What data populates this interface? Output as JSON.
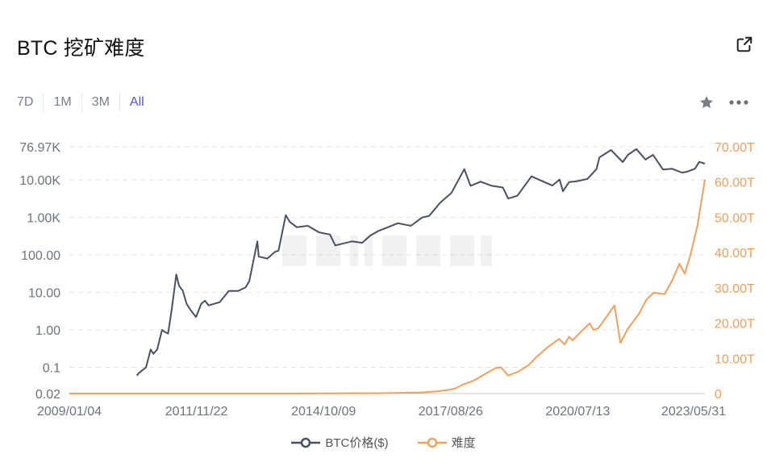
{
  "header": {
    "title": "BTC 挖矿难度"
  },
  "toolbar": {
    "ranges": [
      {
        "label": "7D",
        "active": false
      },
      {
        "label": "1M",
        "active": false
      },
      {
        "label": "3M",
        "active": false
      },
      {
        "label": "All",
        "active": true
      }
    ],
    "icons": [
      "share-icon",
      "star-icon",
      "more-icon"
    ]
  },
  "chart_data": {
    "type": "line",
    "title": "BTC 挖矿难度",
    "x_range": [
      "2009/01/04",
      "2023/05/31"
    ],
    "x_ticks": [
      "2009/01/04",
      "2011/11/22",
      "2014/10/09",
      "2017/08/26",
      "2020/07/13",
      "2023/05/31"
    ],
    "y_left": {
      "scale": "log",
      "range": [
        0.02,
        76970
      ],
      "ticks": [
        {
          "value": 76970,
          "label": "76.97K"
        },
        {
          "value": 10000,
          "label": "10.00K"
        },
        {
          "value": 1000,
          "label": "1.00K"
        },
        {
          "value": 100,
          "label": "100.00"
        },
        {
          "value": 10,
          "label": "10.00"
        },
        {
          "value": 1,
          "label": "1.00"
        },
        {
          "value": 0.1,
          "label": "0.1"
        },
        {
          "value": 0.02,
          "label": "0.02"
        }
      ]
    },
    "y_right": {
      "scale": "linear",
      "unit": "T",
      "range": [
        0,
        70
      ],
      "ticks": [
        {
          "value": 70,
          "label": "70.00T"
        },
        {
          "value": 60,
          "label": "60.00T"
        },
        {
          "value": 50,
          "label": "50.00T"
        },
        {
          "value": 40,
          "label": "40.00T"
        },
        {
          "value": 30,
          "label": "30.00T"
        },
        {
          "value": 20,
          "label": "20.00T"
        },
        {
          "value": 10,
          "label": "10.00T"
        },
        {
          "value": 0,
          "label": "0"
        }
      ]
    },
    "grid": true,
    "legend_position": "bottom",
    "colors": {
      "price": "#4a4f62",
      "difficulty": "#f0a05a",
      "active": "#5b4ed8"
    },
    "series": [
      {
        "name": "BTC价格($)",
        "axis": "left",
        "points": [
          [
            "2010/07/17",
            0.06
          ],
          [
            "2010/08/01",
            0.07
          ],
          [
            "2010/10/01",
            0.1
          ],
          [
            "2010/11/08",
            0.3
          ],
          [
            "2010/12/01",
            0.23
          ],
          [
            "2011/01/01",
            0.3
          ],
          [
            "2011/02/10",
            1.0
          ],
          [
            "2011/03/01",
            0.9
          ],
          [
            "2011/04/01",
            0.8
          ],
          [
            "2011/05/01",
            3.5
          ],
          [
            "2011/06/08",
            30.0
          ],
          [
            "2011/07/01",
            15.0
          ],
          [
            "2011/08/01",
            11.0
          ],
          [
            "2011/09/01",
            5.0
          ],
          [
            "2011/10/01",
            3.5
          ],
          [
            "2011/11/18",
            2.2
          ],
          [
            "2012/01/01",
            5.0
          ],
          [
            "2012/02/01",
            6.0
          ],
          [
            "2012/03/01",
            4.5
          ],
          [
            "2012/06/01",
            5.5
          ],
          [
            "2012/08/15",
            11.0
          ],
          [
            "2012/11/01",
            11.0
          ],
          [
            "2013/01/01",
            13.5
          ],
          [
            "2013/02/01",
            20.0
          ],
          [
            "2013/04/09",
            230.0
          ],
          [
            "2013/04/20",
            90.0
          ],
          [
            "2013/07/01",
            80.0
          ],
          [
            "2013/09/01",
            120.0
          ],
          [
            "2013/10/01",
            130.0
          ],
          [
            "2013/11/30",
            1150.0
          ],
          [
            "2014/01/01",
            770.0
          ],
          [
            "2014/03/01",
            550.0
          ],
          [
            "2014/06/01",
            600.0
          ],
          [
            "2014/09/01",
            400.0
          ],
          [
            "2014/12/01",
            350.0
          ],
          [
            "2015/01/14",
            180.0
          ],
          [
            "2015/06/01",
            230.0
          ],
          [
            "2015/08/24",
            210.0
          ],
          [
            "2015/11/01",
            330.0
          ],
          [
            "2016/01/01",
            430.0
          ],
          [
            "2016/06/15",
            700.0
          ],
          [
            "2016/10/01",
            600.0
          ],
          [
            "2017/01/01",
            1000.0
          ],
          [
            "2017/03/01",
            1100.0
          ],
          [
            "2017/06/01",
            2500.0
          ],
          [
            "2017/09/01",
            4500.0
          ],
          [
            "2017/12/17",
            19500.0
          ],
          [
            "2018/02/06",
            7000.0
          ],
          [
            "2018/05/01",
            9000.0
          ],
          [
            "2018/08/01",
            7000.0
          ],
          [
            "2018/11/01",
            6300.0
          ],
          [
            "2018/12/15",
            3200.0
          ],
          [
            "2019/03/01",
            3800.0
          ],
          [
            "2019/06/26",
            12500.0
          ],
          [
            "2019/09/01",
            10000.0
          ],
          [
            "2019/12/15",
            7100.0
          ],
          [
            "2020/02/13",
            10300.0
          ],
          [
            "2020/03/12",
            5000.0
          ],
          [
            "2020/05/01",
            8800.0
          ],
          [
            "2020/07/01",
            9200.0
          ],
          [
            "2020/10/01",
            10700.0
          ],
          [
            "2020/12/15",
            19500.0
          ],
          [
            "2021/01/08",
            40000.0
          ],
          [
            "2021/04/14",
            63000.0
          ],
          [
            "2021/07/20",
            30000.0
          ],
          [
            "2021/09/01",
            47000.0
          ],
          [
            "2021/11/10",
            67000.0
          ],
          [
            "2022/01/24",
            35000.0
          ],
          [
            "2022/03/28",
            47000.0
          ],
          [
            "2022/06/18",
            19000.0
          ],
          [
            "2022/09/01",
            20000.0
          ],
          [
            "2022/11/21",
            15800.0
          ],
          [
            "2023/01/01",
            16500.0
          ],
          [
            "2023/03/10",
            20000.0
          ],
          [
            "2023/04/14",
            30500.0
          ],
          [
            "2023/05/31",
            27000.0
          ]
        ]
      },
      {
        "name": "难度",
        "axis": "right",
        "points": [
          [
            "2009/01/04",
            0
          ],
          [
            "2013/01/01",
            0
          ],
          [
            "2014/01/01",
            0.002
          ],
          [
            "2015/01/01",
            0.04
          ],
          [
            "2016/01/01",
            0.1
          ],
          [
            "2016/10/01",
            0.25
          ],
          [
            "2017/01/01",
            0.33
          ],
          [
            "2017/05/01",
            0.6
          ],
          [
            "2017/08/01",
            1.0
          ],
          [
            "2017/10/01",
            1.4
          ],
          [
            "2017/12/01",
            2.5
          ],
          [
            "2018/03/01",
            3.6
          ],
          [
            "2018/06/01",
            5.4
          ],
          [
            "2018/09/01",
            7.2
          ],
          [
            "2018/10/15",
            7.45
          ],
          [
            "2018/12/15",
            5.1
          ],
          [
            "2019/03/01",
            6.1
          ],
          [
            "2019/06/01",
            8.0
          ],
          [
            "2019/08/01",
            10.2
          ],
          [
            "2019/11/01",
            13.0
          ],
          [
            "2020/02/10",
            15.5
          ],
          [
            "2020/03/26",
            13.9
          ],
          [
            "2020/05/01",
            16.1
          ],
          [
            "2020/06/01",
            15.1
          ],
          [
            "2020/08/01",
            17.3
          ],
          [
            "2020/10/20",
            19.9
          ],
          [
            "2020/11/20",
            18.0
          ],
          [
            "2021/01/01",
            18.6
          ],
          [
            "2021/05/13",
            25.0
          ],
          [
            "2021/07/01",
            14.4
          ],
          [
            "2021/09/01",
            18.4
          ],
          [
            "2021/12/01",
            22.6
          ],
          [
            "2022/02/01",
            26.6
          ],
          [
            "2022/04/01",
            28.6
          ],
          [
            "2022/07/01",
            28.2
          ],
          [
            "2022/09/01",
            32.0
          ],
          [
            "2022/11/01",
            36.8
          ],
          [
            "2022/12/15",
            34.0
          ],
          [
            "2023/02/01",
            39.4
          ],
          [
            "2023/04/01",
            47.9
          ],
          [
            "2023/05/31",
            60.7
          ]
        ]
      }
    ]
  }
}
